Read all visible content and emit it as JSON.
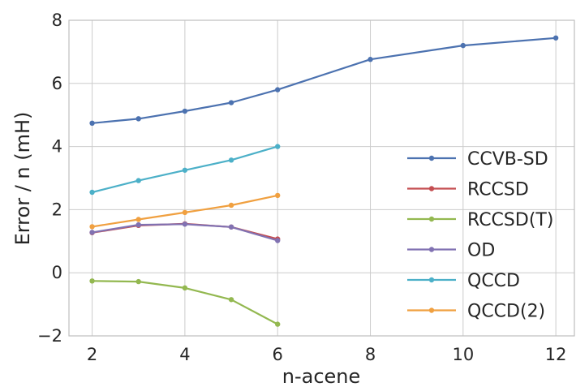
{
  "chart_data": {
    "type": "line",
    "xlabel": "n-acene",
    "ylabel": "Error / n (mH)",
    "xlim": [
      1.5,
      12.4
    ],
    "ylim": [
      -2,
      8
    ],
    "xticks": [
      2,
      4,
      6,
      8,
      10,
      12
    ],
    "yticks": [
      -2,
      0,
      2,
      4,
      6,
      8
    ],
    "ytick_labels": [
      "−2",
      "0",
      "2",
      "4",
      "6",
      "8"
    ],
    "grid": true,
    "legend_position": "right",
    "series": [
      {
        "name": "CCVB-SD",
        "color": "#4c72b0",
        "x": [
          2,
          3,
          4,
          5,
          6,
          8,
          10,
          12
        ],
        "y": [
          4.74,
          4.88,
          5.12,
          5.39,
          5.8,
          6.76,
          7.2,
          7.44
        ]
      },
      {
        "name": "RCCSD",
        "color": "#c44e52",
        "x": [
          2,
          3,
          4,
          5,
          6
        ],
        "y": [
          1.27,
          1.5,
          1.55,
          1.45,
          1.07
        ]
      },
      {
        "name": "RCCSD(T)",
        "color": "#93b850",
        "x": [
          2,
          3,
          4,
          5,
          6
        ],
        "y": [
          -0.26,
          -0.28,
          -0.48,
          -0.85,
          -1.63
        ]
      },
      {
        "name": "OD",
        "color": "#8172b2",
        "x": [
          2,
          3,
          4,
          5,
          6
        ],
        "y": [
          1.28,
          1.52,
          1.54,
          1.45,
          1.02
        ]
      },
      {
        "name": "QCCD",
        "color": "#4cb0c8",
        "x": [
          2,
          3,
          4,
          5,
          6
        ],
        "y": [
          2.55,
          2.92,
          3.25,
          3.57,
          4.0
        ]
      },
      {
        "name": "QCCD(2)",
        "color": "#f0a040",
        "x": [
          2,
          3,
          4,
          5,
          6
        ],
        "y": [
          1.46,
          1.69,
          1.91,
          2.14,
          2.45
        ]
      }
    ]
  }
}
